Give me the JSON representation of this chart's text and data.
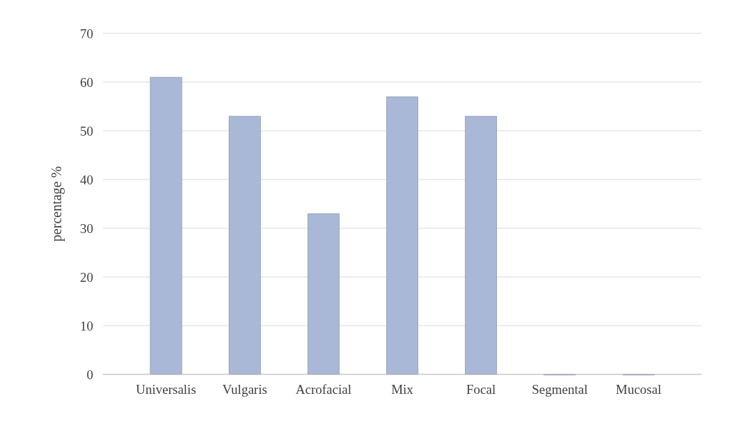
{
  "chart_data": {
    "type": "bar",
    "ylabel": "percentage %",
    "categories": [
      "Universalis",
      "Vulgaris",
      "Acrofacial",
      "Mix",
      "Focal",
      "Segmental",
      "Mucosal"
    ],
    "values": [
      61,
      53,
      33,
      57,
      53,
      0,
      0
    ],
    "color": "#a9b8d6",
    "ylim": [
      0,
      70
    ],
    "yticks": [
      0,
      10,
      20,
      30,
      40,
      50,
      60,
      70
    ],
    "grid": "y"
  }
}
